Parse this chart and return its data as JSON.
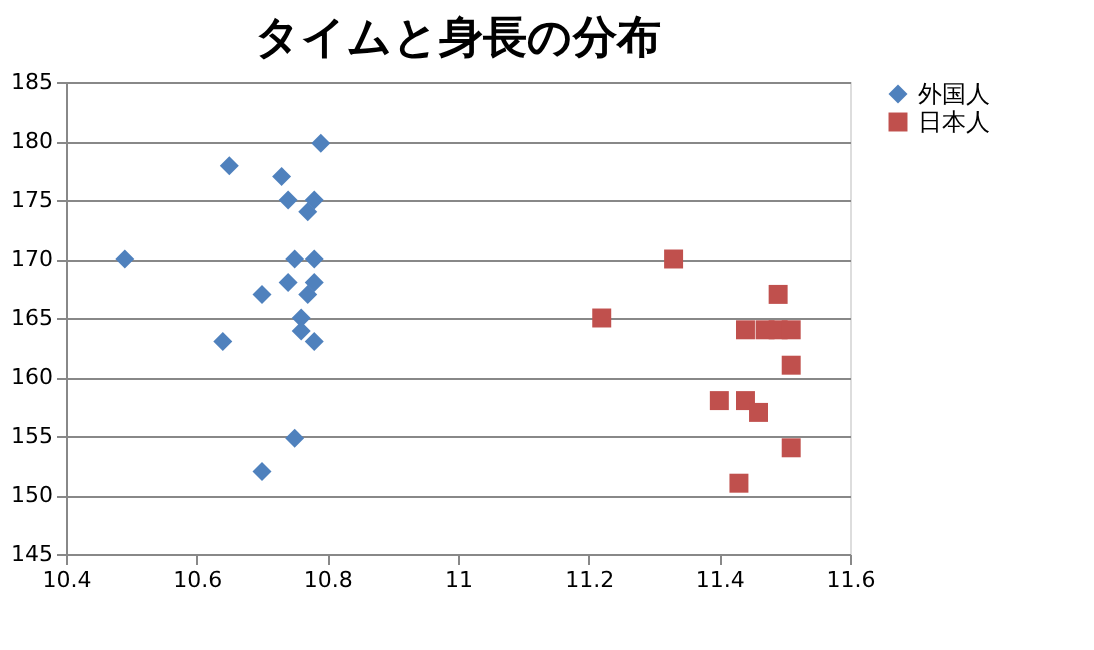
{
  "chart_data": {
    "type": "scatter",
    "title": "タイムと身長の分布",
    "series": [
      {
        "name": "外国人",
        "color": "#4f81bd",
        "marker": "diamond",
        "x": [
          10.79,
          10.65,
          10.73,
          10.74,
          10.78,
          10.77,
          10.49,
          10.75,
          10.78,
          10.74,
          10.78,
          10.7,
          10.77,
          10.76,
          10.76,
          10.64,
          10.78,
          10.75,
          10.7
        ],
        "values": [
          179.8,
          177.9,
          177,
          175,
          175,
          174,
          170,
          170,
          170,
          168,
          168,
          167,
          167,
          165,
          163.9,
          163,
          163,
          154.8,
          152
        ]
      },
      {
        "name": "日本人",
        "color": "#c0504d",
        "marker": "square",
        "x": [
          11.33,
          11.49,
          11.22,
          11.44,
          11.47,
          11.49,
          11.51,
          11.51,
          11.4,
          11.44,
          11.46,
          11.51,
          11.43
        ],
        "values": [
          170,
          167,
          165,
          164,
          164,
          164,
          164,
          161,
          158,
          158,
          157,
          154,
          151
        ]
      }
    ],
    "xlim": [
      10.4,
      11.6
    ],
    "xticks": [
      10.4,
      10.6,
      10.8,
      11,
      11.2,
      11.4,
      11.6
    ],
    "ylim": [
      145,
      185
    ],
    "yticks": [
      145,
      150,
      155,
      160,
      165,
      170,
      175,
      180,
      185
    ],
    "grid": "y",
    "legend": "right"
  }
}
